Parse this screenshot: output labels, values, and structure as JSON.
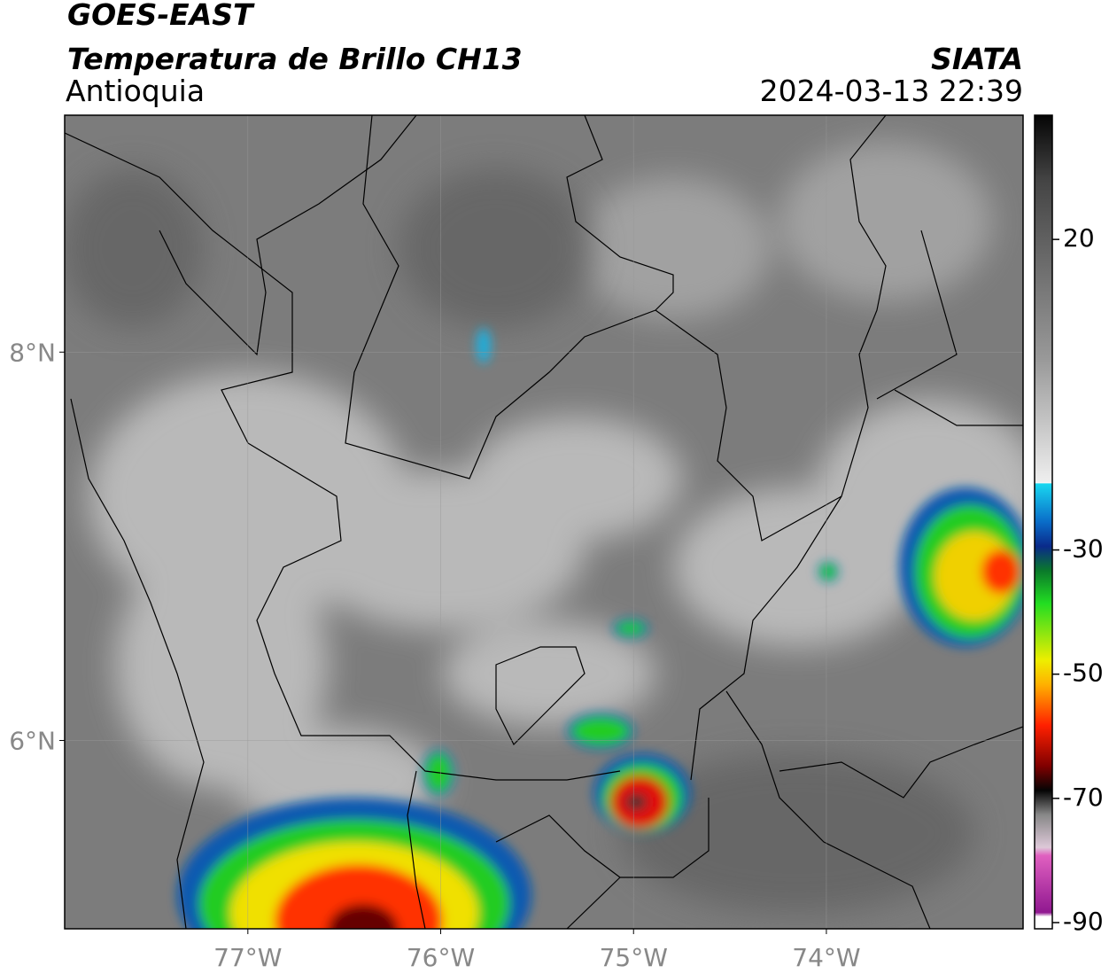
{
  "header": {
    "title": "GOES-EAST",
    "subtitle": "Temperatura de Brillo CH13",
    "region": "Antioquia",
    "source": "SIATA",
    "datetime": "2024-03-13 22:39"
  },
  "map": {
    "xlim": [
      -77.95,
      -72.98
    ],
    "ylim": [
      5.03,
      9.22
    ],
    "xticks": [
      {
        "value": -77,
        "label": "77°W"
      },
      {
        "value": -76,
        "label": "76°W"
      },
      {
        "value": -75,
        "label": "75°W"
      },
      {
        "value": -74,
        "label": "74°W"
      }
    ],
    "yticks": [
      {
        "value": 6,
        "label": "6°N"
      },
      {
        "value": 8,
        "label": "8°N"
      }
    ],
    "grid": true
  },
  "colorbar": {
    "clim": [
      -91,
      40
    ],
    "ticks": [
      20,
      -30,
      -50,
      -70,
      -90
    ]
  }
}
